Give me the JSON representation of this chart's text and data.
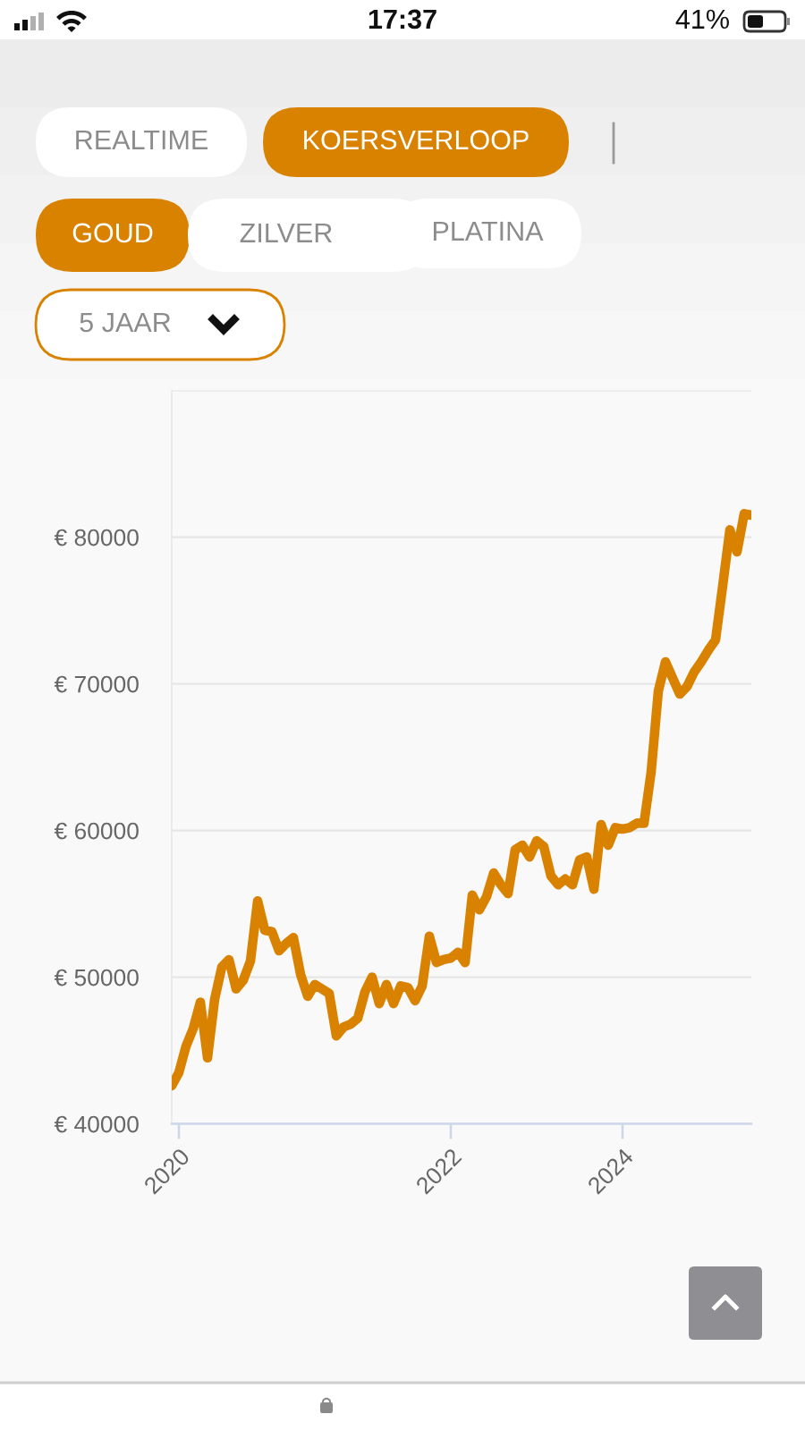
{
  "chart_data": {
    "type": "line",
    "categories": [
      null,
      "2020",
      null,
      null,
      null,
      null,
      null,
      null,
      null,
      null,
      null,
      null,
      null,
      null,
      null,
      null,
      null,
      null,
      null,
      null,
      null,
      null,
      null,
      null,
      null,
      null,
      null,
      null,
      null,
      null,
      null,
      null,
      null,
      null,
      null,
      null,
      null,
      null,
      null,
      "2022",
      null,
      null,
      null,
      null,
      null,
      null,
      null,
      null,
      null,
      null,
      null,
      null,
      null,
      null,
      null,
      null,
      null,
      null,
      null,
      null,
      null,
      null,
      null,
      "2024",
      null,
      null,
      null,
      null,
      null,
      null,
      null,
      null,
      null,
      null,
      null,
      null,
      null,
      null,
      null,
      null,
      null,
      null
    ],
    "series": [
      {
        "color": "#d98200",
        "values": [
          42600,
          43500,
          45300,
          46500,
          48300,
          44500,
          48500,
          50700,
          51200,
          49200,
          49800,
          51100,
          55200,
          53200,
          53100,
          51800,
          52300,
          52700,
          50200,
          48700,
          49500,
          49200,
          48900,
          46000,
          46600,
          46800,
          47200,
          49000,
          50000,
          48200,
          49500,
          48200,
          49400,
          49300,
          48400,
          49400,
          52800,
          51000,
          51200,
          51300,
          51700,
          51000,
          55600,
          54600,
          55500,
          57100,
          56300,
          55700,
          58700,
          59000,
          58200,
          59300,
          58900,
          56900,
          56300,
          56700,
          56300,
          58000,
          58200,
          56000,
          60400,
          59000,
          60200,
          60100,
          60200,
          60500,
          60500,
          64000,
          69500,
          71500,
          70400,
          69300,
          69800,
          70800,
          71500,
          72300,
          73000,
          76700,
          80500,
          79000,
          81600,
          81500
        ]
      }
    ],
    "ylim": [
      40000,
      90000
    ],
    "yticks": [
      {
        "value": 40000,
        "label": "€ 40000"
      },
      {
        "value": 50000,
        "label": "€ 50000"
      },
      {
        "value": 60000,
        "label": "€ 60000"
      },
      {
        "value": 70000,
        "label": "€ 70000"
      },
      {
        "value": 80000,
        "label": "€ 80000"
      },
      {
        "value": 90000,
        "label": null
      }
    ],
    "grid": "y",
    "line_style": "solid",
    "annotations": [
      "17:37",
      "41%",
      "REALTIME",
      "KOERSVERLOOP",
      "GOUD",
      "ZILVER",
      "PLATINA",
      "5 JAAR"
    ]
  }
}
